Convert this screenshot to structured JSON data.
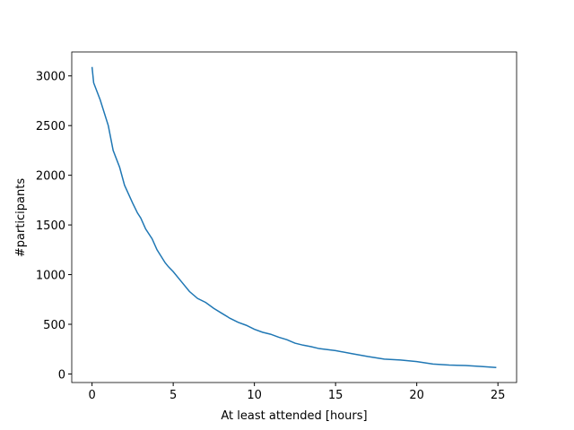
{
  "chart_data": {
    "type": "line",
    "x_label": "At least attended [hours]",
    "y_label": "#participants",
    "series": [
      {
        "name": "participants",
        "color": "#1f77b4",
        "x": [
          0,
          0.1,
          0.5,
          1,
          1.3,
          1.7,
          2,
          2.5,
          2.8,
          3,
          3.3,
          3.7,
          4,
          4.5,
          4.7,
          5,
          5.5,
          6,
          6.5,
          7,
          7.5,
          8,
          8.5,
          9,
          9.5,
          10,
          10.5,
          11,
          11.5,
          12,
          12.5,
          13,
          13.5,
          14,
          15,
          16,
          17,
          18,
          19,
          20,
          21,
          22,
          23,
          24,
          24.9
        ],
        "values": [
          3090,
          2930,
          2760,
          2500,
          2250,
          2080,
          1900,
          1720,
          1620,
          1570,
          1460,
          1360,
          1250,
          1120,
          1080,
          1030,
          930,
          830,
          760,
          720,
          660,
          610,
          560,
          520,
          490,
          450,
          420,
          400,
          370,
          345,
          310,
          290,
          275,
          255,
          235,
          205,
          175,
          150,
          140,
          125,
          100,
          90,
          85,
          75,
          65
        ]
      }
    ],
    "xlim": [
      -1.25,
      26.15
    ],
    "xticks": [
      0,
      5,
      10,
      15,
      20,
      25
    ],
    "ylim": [
      -86,
      3241
    ],
    "yticks": [
      0,
      500,
      1000,
      1500,
      2000,
      2500,
      3000
    ],
    "grid": false
  }
}
